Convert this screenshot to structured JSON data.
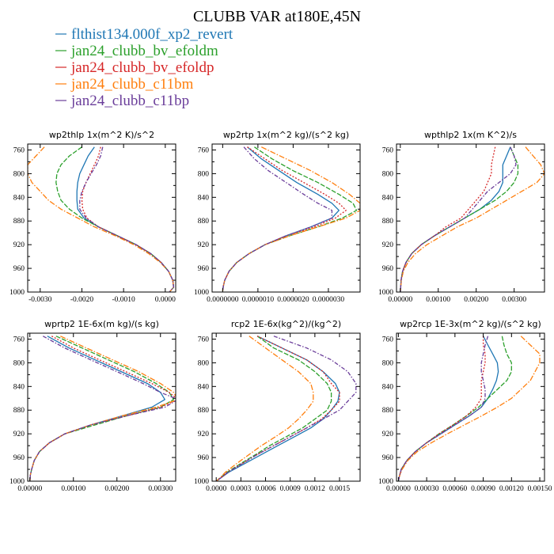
{
  "title": "CLUBB VAR at180E,45N",
  "colors": {
    "blue": "#1f77b4",
    "green": "#2ca02c",
    "red": "#d62728",
    "orange": "#ff7f0e",
    "purple": "#6a3d9a"
  },
  "legend": [
    {
      "name": "flthist134.000f_xp2_revert",
      "color": "#1f77b4"
    },
    {
      "name": "jan24_clubb_bv_efoldm",
      "color": "#2ca02c"
    },
    {
      "name": "jan24_clubb_bv_efoldp",
      "color": "#d62728"
    },
    {
      "name": "jan24_clubb_c11bm",
      "color": "#ff7f0e"
    },
    {
      "name": "jan24_clubb_c11bp",
      "color": "#6a3d9a"
    }
  ],
  "chart_data": [
    {
      "type": "line",
      "title": "wp2thlp   1x(m^2 K)/s^2",
      "xlim": [
        -0.0033,
        0.00025
      ],
      "ylim": [
        1000,
        750
      ],
      "xticks": [
        "-0.0030",
        "-0.0020",
        "-0.0010",
        "0.0000"
      ],
      "xtick_values": [
        -0.003,
        -0.002,
        -0.001,
        0.0
      ],
      "yticks": [
        "760",
        "800",
        "840",
        "880",
        "920",
        "960",
        "1000"
      ],
      "y": [
        755,
        770,
        785,
        800,
        815,
        830,
        845,
        860,
        875,
        890,
        905,
        920,
        935,
        950,
        965,
        980,
        992,
        1000
      ],
      "series": [
        {
          "name": "flthist134.000f_xp2_revert",
          "x": [
            -0.0017,
            -0.00185,
            -0.00195,
            -0.00205,
            -0.0021,
            -0.00212,
            -0.00212,
            -0.0021,
            -0.00195,
            -0.0016,
            -0.00115,
            -0.0007,
            -0.00035,
            -0.0001,
            8e-05,
            0.00018,
            0.0002,
            0.0001
          ]
        },
        {
          "name": "jan24_clubb_bv_efoldm",
          "x": [
            -0.002,
            -0.0023,
            -0.0025,
            -0.0026,
            -0.00262,
            -0.00258,
            -0.0025,
            -0.0023,
            -0.002,
            -0.0016,
            -0.00115,
            -0.0007,
            -0.00035,
            -0.0001,
            8e-05,
            0.00018,
            0.0002,
            0.0001
          ]
        },
        {
          "name": "jan24_clubb_bv_efoldp",
          "x": [
            -0.00155,
            -0.0016,
            -0.0017,
            -0.0018,
            -0.0019,
            -0.00198,
            -0.002,
            -0.00198,
            -0.00188,
            -0.0016,
            -0.00115,
            -0.0007,
            -0.00035,
            -0.0001,
            8e-05,
            0.00018,
            0.0002,
            0.0001
          ]
        },
        {
          "name": "jan24_clubb_c11bm",
          "x": [
            -0.0029,
            -0.0031,
            -0.0033,
            -0.0033,
            -0.0032,
            -0.003,
            -0.0028,
            -0.0025,
            -0.0021,
            -0.0017,
            -0.0012,
            -0.00075,
            -0.0004,
            -0.00012,
            8e-05,
            0.00018,
            0.0002,
            0.0001
          ]
        },
        {
          "name": "jan24_clubb_c11bp",
          "x": [
            -0.0015,
            -0.00155,
            -0.00165,
            -0.00178,
            -0.0019,
            -0.002,
            -0.00205,
            -0.00205,
            -0.0019,
            -0.0016,
            -0.00115,
            -0.0007,
            -0.00035,
            -0.0001,
            8e-05,
            0.00018,
            0.0002,
            0.0001
          ]
        }
      ]
    },
    {
      "type": "line",
      "title": "wp2rtp   1x(m^2 kg)/(s^2 kg)",
      "xlim": [
        -3e-07,
        3.9e-06
      ],
      "ylim": [
        1000,
        750
      ],
      "xticks": [
        "0.0000000",
        "0.0000010",
        "0.0000020",
        "0.0000030"
      ],
      "xtick_values": [
        0.0,
        1e-06,
        2e-06,
        3e-06
      ],
      "yticks": [
        "760",
        "800",
        "840",
        "880",
        "920",
        "960",
        "1000"
      ],
      "y": [
        755,
        775,
        795,
        815,
        835,
        850,
        862,
        875,
        890,
        905,
        920,
        935,
        950,
        965,
        980,
        990,
        998
      ],
      "series": [
        {
          "name": "flthist134.000f_xp2_revert",
          "x": [
            7e-07,
            1.1e-06,
            1.6e-06,
            2.1e-06,
            2.7e-06,
            3.1e-06,
            3.3e-06,
            3.1e-06,
            2.5e-06,
            1.8e-06,
            1.2e-06,
            7.5e-07,
            4e-07,
            1.8e-07,
            6e-08,
            2e-08,
            0.0
          ]
        },
        {
          "name": "jan24_clubb_bv_efoldm",
          "x": [
            9e-07,
            1.4e-06,
            2e-06,
            2.7e-06,
            3.3e-06,
            3.7e-06,
            3.8e-06,
            3.4e-06,
            2.7e-06,
            1.9e-06,
            1.2e-06,
            7.5e-07,
            4e-07,
            1.8e-07,
            6e-08,
            2e-08,
            0.0
          ]
        },
        {
          "name": "jan24_clubb_bv_efoldp",
          "x": [
            7e-07,
            1.2e-06,
            1.7e-06,
            2.3e-06,
            2.9e-06,
            3.3e-06,
            3.5e-06,
            3.2e-06,
            2.6e-06,
            1.8e-06,
            1.2e-06,
            7.5e-07,
            4e-07,
            1.8e-07,
            6e-08,
            2e-08,
            0.0
          ]
        },
        {
          "name": "jan24_clubb_c11bm",
          "x": [
            1.1e-06,
            1.8e-06,
            2.5e-06,
            3.1e-06,
            3.6e-06,
            3.9e-06,
            3.9e-06,
            3.5e-06,
            2.7e-06,
            1.9e-06,
            1.2e-06,
            7.5e-07,
            4e-07,
            1.8e-07,
            6e-08,
            2e-08,
            0.0
          ]
        },
        {
          "name": "jan24_clubb_c11bp",
          "x": [
            6e-07,
            9e-07,
            1.3e-06,
            1.8e-06,
            2.3e-06,
            2.7e-06,
            3.1e-06,
            3.1e-06,
            2.5e-06,
            1.8e-06,
            1.2e-06,
            7.5e-07,
            4e-07,
            1.8e-07,
            6e-08,
            2e-08,
            0.0
          ]
        }
      ]
    },
    {
      "type": "line",
      "title": "wpthlp2   1x(m K^2)/s",
      "xlim": [
        -0.0001,
        0.0038
      ],
      "ylim": [
        1000,
        750
      ],
      "xticks": [
        "0.00000",
        "0.00100",
        "0.00200",
        "0.00300"
      ],
      "xtick_values": [
        0.0,
        0.001,
        0.002,
        0.003
      ],
      "yticks": [
        "760",
        "800",
        "840",
        "880",
        "920",
        "960",
        "1000"
      ],
      "y": [
        755,
        770,
        785,
        800,
        815,
        830,
        845,
        860,
        875,
        890,
        905,
        920,
        935,
        950,
        965,
        980,
        992,
        1000
      ],
      "series": [
        {
          "name": "flthist134.000f_xp2_revert",
          "x": [
            0.0029,
            0.0028,
            0.0027,
            0.0027,
            0.0027,
            0.0026,
            0.0024,
            0.0021,
            0.0017,
            0.0013,
            0.0009,
            0.00055,
            0.0003,
            0.00015,
            6e-05,
            2e-05,
            1e-05,
            0.0
          ]
        },
        {
          "name": "jan24_clubb_bv_efoldm",
          "x": [
            0.0029,
            0.003,
            0.0031,
            0.0031,
            0.003,
            0.0028,
            0.0025,
            0.0021,
            0.0017,
            0.0013,
            0.0009,
            0.00055,
            0.0003,
            0.00015,
            6e-05,
            2e-05,
            1e-05,
            0.0
          ]
        },
        {
          "name": "jan24_clubb_bv_efoldp",
          "x": [
            0.0025,
            0.00245,
            0.0024,
            0.0024,
            0.0023,
            0.0022,
            0.002,
            0.0018,
            0.0016,
            0.0012,
            0.0009,
            0.00055,
            0.0003,
            0.00015,
            6e-05,
            2e-05,
            1e-05,
            0.0
          ]
        },
        {
          "name": "jan24_clubb_c11bm",
          "x": [
            0.0033,
            0.0035,
            0.0037,
            0.0038,
            0.0036,
            0.0032,
            0.0028,
            0.0024,
            0.002,
            0.0015,
            0.0011,
            0.0007,
            0.0004,
            0.0002,
            8e-05,
            3e-05,
            1e-05,
            0.0
          ]
        },
        {
          "name": "jan24_clubb_c11bp",
          "x": [
            0.0029,
            0.003,
            0.00305,
            0.0029,
            0.0026,
            0.0023,
            0.0021,
            0.0019,
            0.0017,
            0.0013,
            0.0009,
            0.00055,
            0.0003,
            0.00015,
            6e-05,
            2e-05,
            1e-05,
            0.0
          ]
        }
      ]
    },
    {
      "type": "line",
      "title": "wprtp2   1E-6x(m kg)/(s kg)",
      "xlim": [
        -5e-05,
        0.00335
      ],
      "ylim": [
        1000,
        750
      ],
      "xticks": [
        "0.00000",
        "0.00100",
        "0.00200",
        "0.00300"
      ],
      "xtick_values": [
        0.0,
        0.001,
        0.002,
        0.003
      ],
      "yticks": [
        "760",
        "800",
        "840",
        "880",
        "920",
        "960",
        "1000"
      ],
      "y": [
        755,
        775,
        795,
        815,
        835,
        850,
        862,
        875,
        890,
        905,
        920,
        935,
        950,
        965,
        980,
        990,
        1000
      ],
      "series": [
        {
          "name": "flthist134.000f_xp2_revert",
          "x": [
            0.0004,
            0.0009,
            0.0015,
            0.0021,
            0.0027,
            0.003,
            0.0031,
            0.0028,
            0.0021,
            0.0014,
            0.0008,
            0.00045,
            0.00022,
            0.0001,
            4e-05,
            1e-05,
            0.0
          ]
        },
        {
          "name": "jan24_clubb_bv_efoldm",
          "x": [
            0.0006,
            0.0012,
            0.0018,
            0.0024,
            0.0029,
            0.0032,
            0.0033,
            0.003,
            0.0022,
            0.0015,
            0.0008,
            0.00045,
            0.00022,
            0.0001,
            4e-05,
            1e-05,
            0.0
          ]
        },
        {
          "name": "jan24_clubb_bv_efoldp",
          "x": [
            0.0005,
            0.001,
            0.0016,
            0.0022,
            0.0028,
            0.0032,
            0.0034,
            0.003,
            0.0022,
            0.0014,
            0.0008,
            0.00045,
            0.00022,
            0.0001,
            4e-05,
            1e-05,
            0.0
          ]
        },
        {
          "name": "jan24_clubb_c11bm",
          "x": [
            0.0007,
            0.0013,
            0.0019,
            0.0025,
            0.003,
            0.0033,
            0.0034,
            0.0029,
            0.0021,
            0.0014,
            0.0008,
            0.00045,
            0.00022,
            0.0001,
            4e-05,
            1e-05,
            0.0
          ]
        },
        {
          "name": "jan24_clubb_c11bp",
          "x": [
            0.0003,
            0.0008,
            0.0014,
            0.002,
            0.0026,
            0.003,
            0.0034,
            0.0031,
            0.0022,
            0.0014,
            0.0008,
            0.00045,
            0.00022,
            0.0001,
            4e-05,
            1e-05,
            0.0
          ]
        }
      ]
    },
    {
      "type": "line",
      "title": "rcp2   1E-6x(kg^2)/(kg^2)",
      "xlim": [
        -5e-05,
        0.00175
      ],
      "ylim": [
        1000,
        750
      ],
      "xticks": [
        "0.0000",
        "0.0003",
        "0.0006",
        "0.0009",
        "0.0012",
        "0.0015"
      ],
      "xtick_values": [
        0.0,
        0.0003,
        0.0006,
        0.0009,
        0.0012,
        0.0015
      ],
      "yticks": [
        "760",
        "800",
        "840",
        "880",
        "920",
        "960",
        "1000"
      ],
      "y": [
        755,
        775,
        795,
        815,
        835,
        850,
        865,
        880,
        895,
        910,
        925,
        940,
        955,
        970,
        985,
        995,
        1000
      ],
      "series": [
        {
          "name": "flthist134.000f_xp2_revert",
          "x": [
            0.0005,
            0.0008,
            0.0011,
            0.0013,
            0.00145,
            0.0015,
            0.00148,
            0.0014,
            0.0013,
            0.00115,
            0.00095,
            0.00075,
            0.00055,
            0.00035,
            0.00015,
            5e-05,
            0.0
          ]
        },
        {
          "name": "jan24_clubb_bv_efoldm",
          "x": [
            0.0005,
            0.0007,
            0.001,
            0.0012,
            0.00135,
            0.0014,
            0.0014,
            0.00135,
            0.0012,
            0.00105,
            0.00085,
            0.00065,
            0.00048,
            0.0003,
            0.00013,
            4e-05,
            0.0
          ]
        },
        {
          "name": "jan24_clubb_bv_efoldp",
          "x": [
            0.0005,
            0.0008,
            0.0011,
            0.0013,
            0.0014,
            0.0015,
            0.0015,
            0.0014,
            0.00128,
            0.0011,
            0.0009,
            0.0007,
            0.0005,
            0.00032,
            0.00014,
            5e-05,
            0.0
          ]
        },
        {
          "name": "jan24_clubb_c11bm",
          "x": [
            0.0004,
            0.0006,
            0.0008,
            0.001,
            0.00115,
            0.00118,
            0.00118,
            0.0011,
            0.001,
            0.00088,
            0.00072,
            0.00055,
            0.0004,
            0.00025,
            0.00011,
            4e-05,
            0.0
          ]
        },
        {
          "name": "jan24_clubb_c11bp",
          "x": [
            0.0007,
            0.0011,
            0.0014,
            0.0016,
            0.0017,
            0.0017,
            0.0016,
            0.0015,
            0.0013,
            0.0011,
            0.0009,
            0.0007,
            0.0005,
            0.00032,
            0.00014,
            5e-05,
            0.0
          ]
        }
      ]
    },
    {
      "type": "line",
      "title": "wp2rcp   1E-3x(m^2 kg)/(s^2 kg)",
      "xlim": [
        -2e-05,
        0.00155
      ],
      "ylim": [
        1000,
        750
      ],
      "xticks": [
        "0.00000",
        "0.00030",
        "0.00060",
        "0.00090",
        "0.00120",
        "0.00150"
      ],
      "xtick_values": [
        0.0,
        0.0003,
        0.0006,
        0.0009,
        0.0012,
        0.0015
      ],
      "yticks": [
        "760",
        "800",
        "840",
        "880",
        "920",
        "960",
        "1000"
      ],
      "y": [
        755,
        770,
        785,
        800,
        815,
        830,
        845,
        860,
        875,
        890,
        905,
        920,
        935,
        950,
        965,
        980,
        992,
        1000
      ],
      "series": [
        {
          "name": "flthist134.000f_xp2_revert",
          "x": [
            0.0009,
            0.00095,
            0.001,
            0.00105,
            0.00106,
            0.00104,
            0.001,
            0.00095,
            0.00088,
            0.00075,
            0.0006,
            0.00045,
            0.0003,
            0.00018,
            9e-05,
            3e-05,
            1e-05,
            0.0
          ]
        },
        {
          "name": "jan24_clubb_bv_efoldm",
          "x": [
            0.0011,
            0.00112,
            0.00115,
            0.0012,
            0.0012,
            0.00115,
            0.00105,
            0.00095,
            0.00085,
            0.00072,
            0.00058,
            0.00043,
            0.0003,
            0.00018,
            9e-05,
            3e-05,
            1e-05,
            0.0
          ]
        },
        {
          "name": "jan24_clubb_bv_efoldp",
          "x": [
            0.0009,
            0.0009,
            0.00092,
            0.00092,
            0.0009,
            0.00088,
            0.00088,
            0.00088,
            0.00082,
            0.00072,
            0.00058,
            0.00043,
            0.0003,
            0.00018,
            9e-05,
            3e-05,
            1e-05,
            0.0
          ]
        },
        {
          "name": "jan24_clubb_c11bm",
          "x": [
            0.0013,
            0.0014,
            0.0015,
            0.0015,
            0.00145,
            0.0014,
            0.0013,
            0.0012,
            0.00105,
            0.00088,
            0.0007,
            0.00052,
            0.00035,
            0.0002,
            0.0001,
            4e-05,
            1e-05,
            0.0
          ]
        },
        {
          "name": "jan24_clubb_c11bp",
          "x": [
            0.00095,
            0.00092,
            0.0009,
            0.00088,
            0.00088,
            0.0009,
            0.00092,
            0.00092,
            0.00088,
            0.00075,
            0.0006,
            0.00045,
            0.0003,
            0.00018,
            9e-05,
            3e-05,
            1e-05,
            0.0
          ]
        }
      ]
    }
  ]
}
